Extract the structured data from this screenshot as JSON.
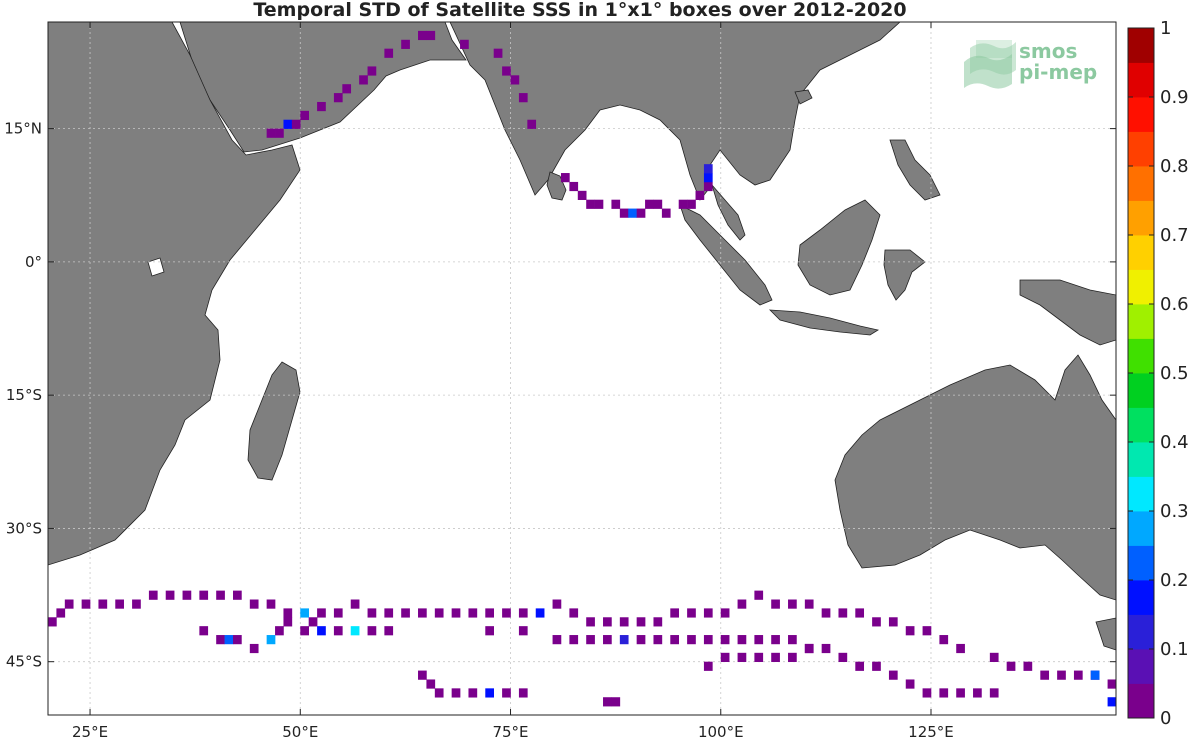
{
  "chart_data": {
    "type": "heatmap",
    "title": "Temporal STD of Satellite SSS in 1°x1° boxes over 2012-2020",
    "xlabel": "",
    "ylabel": "",
    "xlim": [
      20,
      147
    ],
    "ylim": [
      -51,
      27
    ],
    "grid": true,
    "x_ticks": [
      25,
      50,
      75,
      100,
      125
    ],
    "x_tick_labels": [
      "25°E",
      "50°E",
      "75°E",
      "100°E",
      "125°E"
    ],
    "y_ticks": [
      15,
      0,
      -15,
      -30,
      -45
    ],
    "y_tick_labels": [
      "15°N",
      "0°",
      "15°S",
      "30°S",
      "45°S"
    ],
    "colorbar": {
      "range": [
        0,
        1
      ],
      "ticks": [
        "0",
        "0.1",
        "0.2",
        "0.3",
        "0.4",
        "0.5",
        "0.6",
        "0.7",
        "0.8",
        "0.9",
        "1"
      ],
      "colors": [
        "#7a008c",
        "#5a10b4",
        "#2a20d8",
        "#0010ff",
        "#0060ff",
        "#00a8ff",
        "#00e8ff",
        "#00e8b0",
        "#00e060",
        "#00d020",
        "#40e000",
        "#a0f000",
        "#f0f000",
        "#ffd000",
        "#ffa000",
        "#ff7000",
        "#ff4000",
        "#ff1000",
        "#e00000",
        "#a00000"
      ]
    },
    "cells": [
      [
        64,
        25,
        0
      ],
      [
        65,
        25,
        0
      ],
      [
        62,
        24,
        0
      ],
      [
        60,
        23,
        0
      ],
      [
        58,
        21,
        0
      ],
      [
        57,
        20,
        0
      ],
      [
        55,
        19,
        0
      ],
      [
        54,
        18,
        0
      ],
      [
        52,
        17,
        0
      ],
      [
        50,
        16,
        0
      ],
      [
        48,
        15,
        0.15
      ],
      [
        46,
        14,
        0
      ],
      [
        47,
        14,
        0
      ],
      [
        49,
        15,
        0
      ],
      [
        69,
        24,
        0
      ],
      [
        73,
        23,
        0
      ],
      [
        74,
        21,
        0
      ],
      [
        75,
        20,
        0
      ],
      [
        76,
        18,
        0
      ],
      [
        77,
        15,
        0
      ],
      [
        81,
        9,
        0
      ],
      [
        82,
        8,
        0
      ],
      [
        83,
        7,
        0
      ],
      [
        84,
        6,
        0
      ],
      [
        85,
        6,
        0
      ],
      [
        87,
        6,
        0
      ],
      [
        88,
        5,
        0
      ],
      [
        89,
        5,
        0.2
      ],
      [
        90,
        5,
        0
      ],
      [
        91,
        6,
        0
      ],
      [
        92,
        6,
        0
      ],
      [
        93,
        5,
        0
      ],
      [
        95,
        6,
        0
      ],
      [
        96,
        6,
        0
      ],
      [
        97,
        7,
        0
      ],
      [
        98,
        8,
        0
      ],
      [
        98,
        9,
        0.15
      ],
      [
        98,
        10,
        0.12
      ],
      [
        20,
        -41,
        0
      ],
      [
        21,
        -40,
        0
      ],
      [
        22,
        -39,
        0
      ],
      [
        24,
        -39,
        0
      ],
      [
        26,
        -39,
        0
      ],
      [
        28,
        -39,
        0
      ],
      [
        30,
        -39,
        0
      ],
      [
        32,
        -38,
        0
      ],
      [
        34,
        -38,
        0
      ],
      [
        36,
        -38,
        0
      ],
      [
        38,
        -38,
        0
      ],
      [
        40,
        -38,
        0
      ],
      [
        42,
        -38,
        0
      ],
      [
        44,
        -39,
        0
      ],
      [
        46,
        -39,
        0
      ],
      [
        48,
        -40,
        0
      ],
      [
        50,
        -40,
        0.25
      ],
      [
        51,
        -41,
        0
      ],
      [
        52,
        -40,
        0
      ],
      [
        54,
        -40,
        0
      ],
      [
        56,
        -39,
        0
      ],
      [
        58,
        -40,
        0
      ],
      [
        60,
        -40,
        0
      ],
      [
        62,
        -40,
        0
      ],
      [
        64,
        -40,
        0
      ],
      [
        66,
        -40,
        0
      ],
      [
        68,
        -40,
        0
      ],
      [
        70,
        -40,
        0
      ],
      [
        72,
        -40,
        0
      ],
      [
        74,
        -40,
        0
      ],
      [
        76,
        -40,
        0
      ],
      [
        78,
        -40,
        0.15
      ],
      [
        80,
        -39,
        0
      ],
      [
        82,
        -40,
        0
      ],
      [
        84,
        -41,
        0
      ],
      [
        86,
        -41,
        0
      ],
      [
        88,
        -41,
        0
      ],
      [
        90,
        -41,
        0
      ],
      [
        92,
        -41,
        0
      ],
      [
        94,
        -40,
        0
      ],
      [
        96,
        -40,
        0
      ],
      [
        98,
        -40,
        0
      ],
      [
        100,
        -40,
        0
      ],
      [
        102,
        -39,
        0
      ],
      [
        104,
        -38,
        0
      ],
      [
        106,
        -39,
        0
      ],
      [
        108,
        -39,
        0
      ],
      [
        110,
        -39,
        0
      ],
      [
        112,
        -40,
        0
      ],
      [
        114,
        -40,
        0
      ],
      [
        116,
        -40,
        0
      ],
      [
        118,
        -41,
        0
      ],
      [
        120,
        -41,
        0
      ],
      [
        122,
        -42,
        0
      ],
      [
        124,
        -42,
        0
      ],
      [
        126,
        -43,
        0
      ],
      [
        128,
        -44,
        0
      ],
      [
        38,
        -42,
        0
      ],
      [
        40,
        -43,
        0
      ],
      [
        41,
        -43,
        0.2
      ],
      [
        42,
        -43,
        0
      ],
      [
        44,
        -44,
        0
      ],
      [
        46,
        -43,
        0.25
      ],
      [
        47,
        -42,
        0
      ],
      [
        48,
        -41,
        0
      ],
      [
        50,
        -42,
        0
      ],
      [
        52,
        -42,
        0.15
      ],
      [
        54,
        -42,
        0
      ],
      [
        56,
        -42,
        0.3
      ],
      [
        58,
        -42,
        0
      ],
      [
        60,
        -42,
        0
      ],
      [
        72,
        -42,
        0
      ],
      [
        76,
        -42,
        0
      ],
      [
        80,
        -43,
        0
      ],
      [
        82,
        -43,
        0
      ],
      [
        84,
        -43,
        0
      ],
      [
        86,
        -43,
        0
      ],
      [
        88,
        -43,
        0.12
      ],
      [
        90,
        -43,
        0
      ],
      [
        92,
        -43,
        0
      ],
      [
        94,
        -43,
        0
      ],
      [
        96,
        -43,
        0
      ],
      [
        98,
        -43,
        0
      ],
      [
        100,
        -43,
        0
      ],
      [
        102,
        -43,
        0
      ],
      [
        104,
        -43,
        0
      ],
      [
        106,
        -43,
        0
      ],
      [
        108,
        -43,
        0
      ],
      [
        110,
        -44,
        0
      ],
      [
        98,
        -46,
        0
      ],
      [
        100,
        -45,
        0
      ],
      [
        102,
        -45,
        0
      ],
      [
        104,
        -45,
        0
      ],
      [
        106,
        -45,
        0
      ],
      [
        108,
        -45,
        0
      ],
      [
        110,
        -44,
        0
      ],
      [
        112,
        -44,
        0
      ],
      [
        114,
        -45,
        0
      ],
      [
        116,
        -46,
        0
      ],
      [
        118,
        -46,
        0
      ],
      [
        120,
        -47,
        0
      ],
      [
        122,
        -48,
        0
      ],
      [
        124,
        -49,
        0
      ],
      [
        126,
        -49,
        0
      ],
      [
        128,
        -49,
        0
      ],
      [
        130,
        -49,
        0
      ],
      [
        132,
        -49,
        0
      ],
      [
        132,
        -45,
        0
      ],
      [
        134,
        -46,
        0
      ],
      [
        136,
        -46,
        0
      ],
      [
        138,
        -47,
        0
      ],
      [
        140,
        -47,
        0
      ],
      [
        142,
        -47,
        0
      ],
      [
        144,
        -47,
        0
      ],
      [
        146,
        -48,
        0
      ],
      [
        64,
        -47,
        0
      ],
      [
        65,
        -48,
        0
      ],
      [
        66,
        -49,
        0
      ],
      [
        68,
        -49,
        0
      ],
      [
        70,
        -49,
        0
      ],
      [
        72,
        -49,
        0.15
      ],
      [
        74,
        -49,
        0
      ],
      [
        76,
        -49,
        0
      ],
      [
        86,
        -50,
        0
      ],
      [
        87,
        -50,
        0
      ],
      [
        144,
        -47,
        0.2
      ],
      [
        146,
        -50,
        0.15
      ]
    ]
  },
  "logo": {
    "line1": "smos",
    "line2": "pi-mep"
  }
}
